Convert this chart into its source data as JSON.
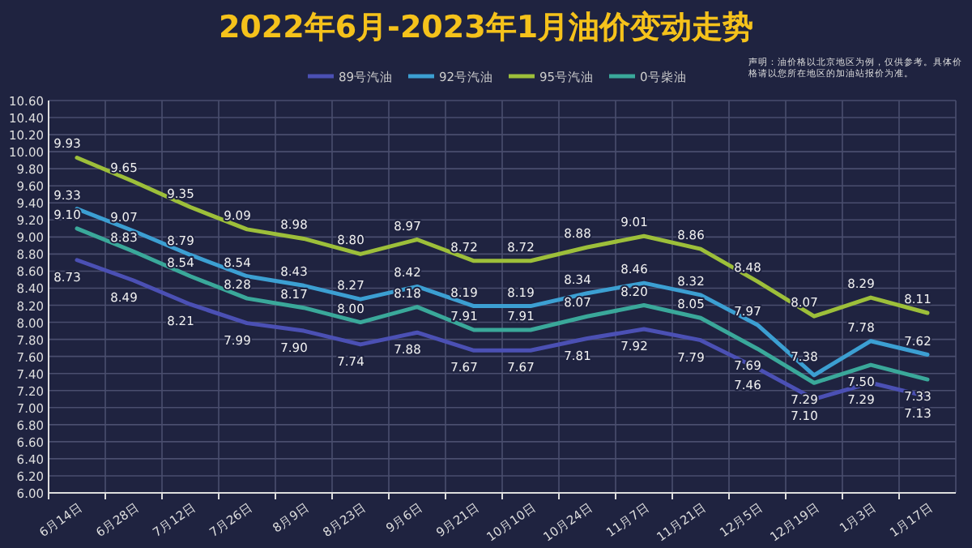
{
  "chart_data": {
    "type": "line",
    "title": "2022年6月-2023年1月油价变动走势",
    "annotations": [
      "声明：油价格以北京地区为例，仅供参考。具体价格请以您所在地区的加油站报价为准。"
    ],
    "categories": [
      "6月14日",
      "6月28日",
      "7月12日",
      "7月26日",
      "8月9日",
      "8月23日",
      "9月6日",
      "9月21日",
      "10月10日",
      "10月24日",
      "11月7日",
      "11月21日",
      "12月5日",
      "12月19日",
      "1月3日",
      "1月17日"
    ],
    "series": [
      {
        "name": "89号汽油",
        "color": "#4b50b4",
        "values": [
          8.73,
          8.49,
          8.21,
          7.99,
          7.9,
          7.74,
          7.88,
          7.67,
          7.67,
          7.81,
          7.92,
          7.79,
          7.46,
          7.1,
          7.29,
          7.13
        ],
        "value_labels": [
          "8.73",
          "8.49",
          "8.21",
          "7.99",
          "7.90",
          "7.74",
          "7.88",
          "7.67",
          "7.67",
          "7.81",
          "7.92",
          "7.79",
          "7.46",
          "7.10",
          "7.29",
          "7.13"
        ]
      },
      {
        "name": "92号汽油",
        "color": "#3c9fd2",
        "values": [
          9.33,
          9.07,
          8.79,
          8.54,
          8.43,
          8.27,
          8.42,
          8.19,
          8.19,
          8.34,
          8.46,
          8.32,
          7.97,
          7.38,
          7.78,
          7.62
        ],
        "value_labels": [
          "9.33",
          "9.07",
          "8.79",
          "8.54",
          "8.43",
          "8.27",
          "8.42",
          "8.19",
          "8.19",
          "8.34",
          "8.46",
          "8.32",
          "7.97",
          "7.38",
          "7.78",
          "7.62"
        ]
      },
      {
        "name": "95号汽油",
        "color": "#9dbf3a",
        "values": [
          9.93,
          9.65,
          9.35,
          9.09,
          8.98,
          8.8,
          8.97,
          8.72,
          8.72,
          8.88,
          9.01,
          8.86,
          8.48,
          8.07,
          8.29,
          8.11
        ],
        "value_labels": [
          "9.93",
          "9.65",
          "9.35",
          "9.09",
          "8.98",
          "8.80",
          "8.97",
          "8.72",
          "8.72",
          "8.88",
          "9.01",
          "8.86",
          "8.48",
          "8.07",
          "8.29",
          "8.11"
        ]
      },
      {
        "name": "0号柴油",
        "color": "#3aa89a",
        "values": [
          9.1,
          8.83,
          8.54,
          8.28,
          8.17,
          8.0,
          8.18,
          7.91,
          7.91,
          8.07,
          8.2,
          8.05,
          7.69,
          7.29,
          7.5,
          7.33
        ],
        "value_labels": [
          "9.10",
          "8.83",
          "8.54",
          "8.28",
          "8.17",
          "8.00",
          "8.18",
          "7.91",
          "7.91",
          "8.07",
          "8.20",
          "8.05",
          "7.69",
          "7.29",
          "7.50",
          "7.33"
        ]
      }
    ],
    "ylim": [
      6.0,
      10.6
    ],
    "yticks": [
      {
        "value": 6.0,
        "label": "6.00"
      },
      {
        "value": 6.2,
        "label": "6.20"
      },
      {
        "value": 6.4,
        "label": "6.40"
      },
      {
        "value": 6.6,
        "label": "6.60"
      },
      {
        "value": 6.8,
        "label": "6.80"
      },
      {
        "value": 7.0,
        "label": "7.00"
      },
      {
        "value": 7.2,
        "label": "7.20"
      },
      {
        "value": 7.4,
        "label": "7.40"
      },
      {
        "value": 7.6,
        "label": "7.60"
      },
      {
        "value": 7.8,
        "label": "7.80"
      },
      {
        "value": 8.0,
        "label": "8.00"
      },
      {
        "value": 8.2,
        "label": "8.20"
      },
      {
        "value": 8.4,
        "label": "8.40"
      },
      {
        "value": 8.6,
        "label": "8.60"
      },
      {
        "value": 8.8,
        "label": "8.80"
      },
      {
        "value": 9.0,
        "label": "9.00"
      },
      {
        "value": 9.2,
        "label": "9.20"
      },
      {
        "value": 9.4,
        "label": "9.40"
      },
      {
        "value": 9.6,
        "label": "9.60"
      },
      {
        "value": 9.8,
        "label": "9.80"
      },
      {
        "value": 10.0,
        "label": "10.00"
      },
      {
        "value": 10.2,
        "label": "10.20"
      },
      {
        "value": 10.4,
        "label": "10.40"
      },
      {
        "value": 10.6,
        "label": "10.60"
      }
    ],
    "grid": true,
    "legend": "top",
    "marker": "none"
  }
}
